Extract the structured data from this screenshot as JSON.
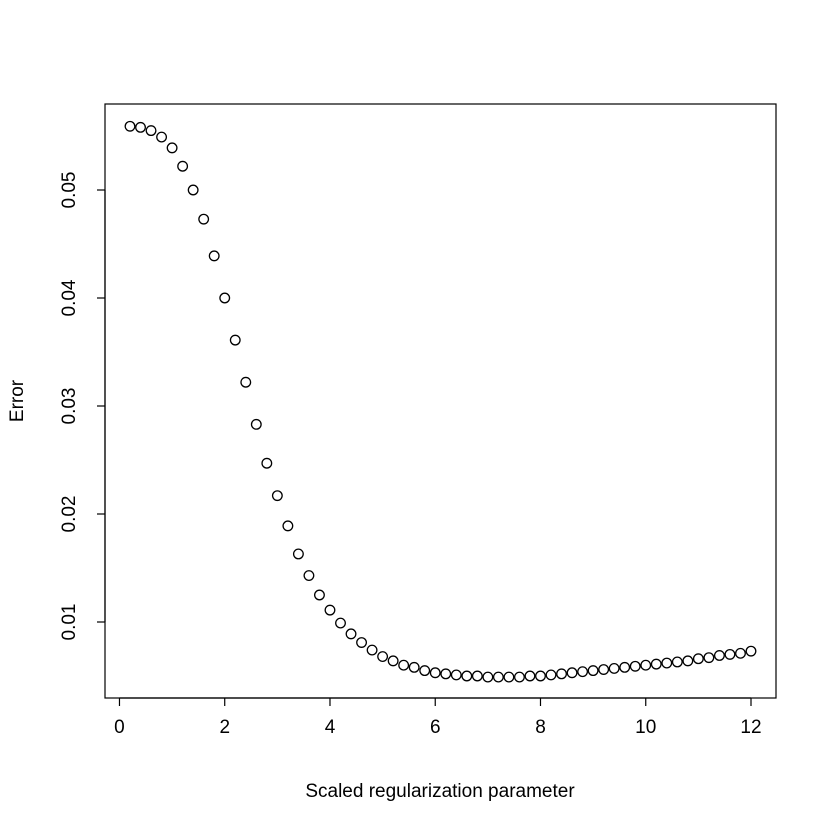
{
  "chart_data": {
    "type": "scatter",
    "title": "",
    "xlabel": "Scaled regularization parameter",
    "ylabel": "Error",
    "xlim": [
      0,
      12.5
    ],
    "ylim": [
      0.0028,
      0.0575
    ],
    "xticks": [
      0,
      2,
      4,
      6,
      8,
      10,
      12
    ],
    "yticks": [
      0.01,
      0.02,
      0.03,
      0.04,
      0.05
    ],
    "xtick_labels": [
      "0",
      "2",
      "4",
      "6",
      "8",
      "10",
      "12"
    ],
    "ytick_labels": [
      "0.01",
      "0.02",
      "0.03",
      "0.04",
      "0.05"
    ],
    "grid": false,
    "marker": "open-circle",
    "series": [
      {
        "x": [
          0.2,
          0.4,
          0.6,
          0.8,
          1.0,
          1.2,
          1.4,
          1.6,
          1.8,
          2.0,
          2.2,
          2.4,
          2.6,
          2.8,
          3.0,
          3.2,
          3.4,
          3.6,
          3.8,
          4.0,
          4.2,
          4.4,
          4.6,
          4.8,
          5.0,
          5.2,
          5.4,
          5.6,
          5.8,
          6.0,
          6.2,
          6.4,
          6.6,
          6.8,
          7.0,
          7.2,
          7.4,
          7.6,
          7.8,
          8.0,
          8.2,
          8.4,
          8.6,
          8.8,
          9.0,
          9.2,
          9.4,
          9.6,
          9.8,
          10.0,
          10.2,
          10.4,
          10.6,
          10.8,
          11.0,
          11.2,
          11.4,
          11.6,
          11.8,
          12.0
        ],
        "y": [
          0.0559,
          0.0558,
          0.0555,
          0.0549,
          0.0539,
          0.0522,
          0.05,
          0.0473,
          0.0439,
          0.04,
          0.0361,
          0.0322,
          0.0283,
          0.0247,
          0.0217,
          0.0189,
          0.0163,
          0.0143,
          0.0125,
          0.0111,
          0.0099,
          0.0089,
          0.0081,
          0.0074,
          0.0068,
          0.0064,
          0.006,
          0.0058,
          0.0055,
          0.0053,
          0.0052,
          0.0051,
          0.005,
          0.005,
          0.0049,
          0.0049,
          0.0049,
          0.0049,
          0.005,
          0.005,
          0.0051,
          0.0052,
          0.0053,
          0.0054,
          0.0055,
          0.0056,
          0.0057,
          0.0058,
          0.0059,
          0.006,
          0.0061,
          0.0062,
          0.0063,
          0.0064,
          0.0066,
          0.0067,
          0.0069,
          0.007,
          0.0071,
          0.0073
        ]
      }
    ]
  }
}
